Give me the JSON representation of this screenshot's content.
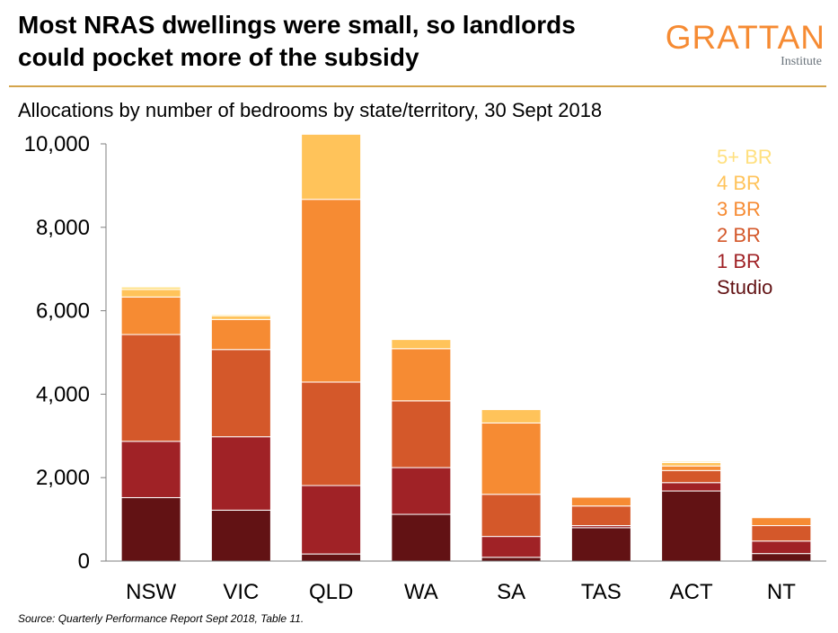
{
  "header": {
    "title_line1": "Most NRAS dwellings were small, so landlords",
    "title_line2": "could pocket more of the subsidy",
    "subtitle": "Allocations by number of bedrooms by state/territory, 30 Sept 2018"
  },
  "logo": {
    "word": "GRATTAN",
    "sub": "Institute"
  },
  "footer": {
    "source": "Source: Quarterly Performance Report Sept 2018, Table 11."
  },
  "colors": {
    "accent": "#F68B33",
    "rule": "#D4A44B",
    "series": [
      "#621214",
      "#A02226",
      "#D4582A",
      "#F68B33",
      "#FFC35A",
      "#FFE07F"
    ]
  },
  "chart_data": {
    "type": "bar",
    "stacked": true,
    "title": "Allocations by number of bedrooms by state/territory, 30 Sept 2018",
    "xlabel": "",
    "ylabel": "",
    "ylim": [
      0,
      10000
    ],
    "yticks": [
      0,
      2000,
      4000,
      6000,
      8000,
      10000
    ],
    "ytick_labels": [
      "0",
      "2,000",
      "4,000",
      "6,000",
      "8,000",
      "10,000"
    ],
    "grid": false,
    "legend_position": "top-right",
    "legend_order": [
      "5+ BR",
      "4 BR",
      "3 BR",
      "2 BR",
      "1 BR",
      "Studio"
    ],
    "categories": [
      "NSW",
      "VIC",
      "QLD",
      "WA",
      "SA",
      "TAS",
      "ACT",
      "NT"
    ],
    "series": [
      {
        "name": "Studio",
        "values": [
          1520,
          1220,
          170,
          1120,
          90,
          800,
          1680,
          180
        ]
      },
      {
        "name": "1 BR",
        "values": [
          1350,
          1760,
          1640,
          1120,
          500,
          50,
          200,
          300
        ]
      },
      {
        "name": "2 BR",
        "values": [
          2560,
          2090,
          2480,
          1600,
          1010,
          470,
          290,
          370
        ]
      },
      {
        "name": "3 BR",
        "values": [
          900,
          720,
          4380,
          1250,
          1710,
          210,
          110,
          190
        ]
      },
      {
        "name": "4 BR",
        "values": [
          180,
          90,
          1560,
          220,
          320,
          0,
          80,
          0
        ]
      },
      {
        "name": "5+ BR",
        "values": [
          60,
          30,
          0,
          0,
          0,
          0,
          30,
          0
        ]
      }
    ]
  }
}
